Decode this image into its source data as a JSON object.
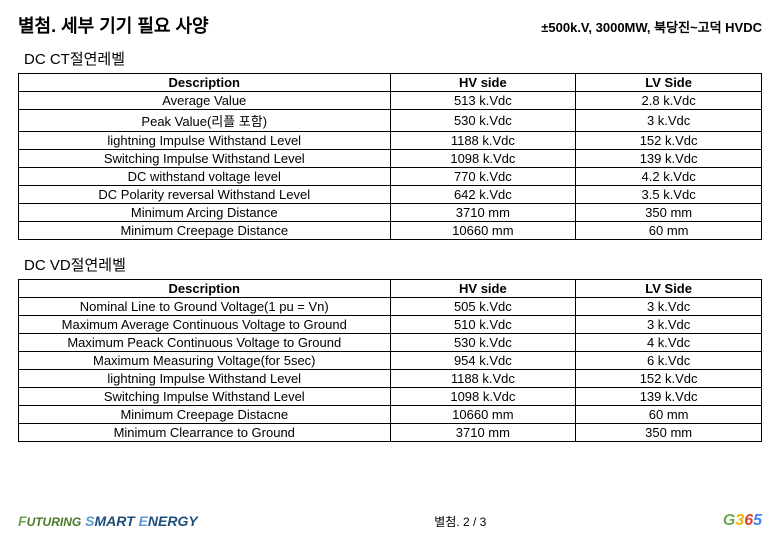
{
  "header": {
    "title": "별첨. 세부 기기 필요 사양",
    "subtitle": "±500k.V, 3000MW, 북당진~고덕 HVDC"
  },
  "section1": {
    "label": "DC CT절연레벨",
    "columns": [
      "Description",
      "HV side",
      "LV Side"
    ],
    "rows": [
      [
        "Average Value",
        "513 k.Vdc",
        "2.8 k.Vdc"
      ],
      [
        "Peak Value(리플 포함)",
        "530 k.Vdc",
        "3 k.Vdc"
      ],
      [
        "lightning Impulse Withstand Level",
        "1188 k.Vdc",
        "152 k.Vdc"
      ],
      [
        "Switching Impulse Withstand Level",
        "1098 k.Vdc",
        "139 k.Vdc"
      ],
      [
        "DC withstand voltage level",
        "770 k.Vdc",
        "4.2 k.Vdc"
      ],
      [
        "DC Polarity reversal Withstand  Level",
        "642 k.Vdc",
        "3.5 k.Vdc"
      ],
      [
        "Minimum Arcing Distance",
        "3710 mm",
        "350 mm"
      ],
      [
        "Minimum Creepage Distance",
        "10660 mm",
        "60 mm"
      ]
    ]
  },
  "section2": {
    "label": "DC VD절연레벨",
    "columns": [
      "Description",
      "HV side",
      "LV Side"
    ],
    "rows": [
      [
        "Nominal Line to Ground Voltage(1 pu = Vn)",
        "505 k.Vdc",
        "3 k.Vdc"
      ],
      [
        "Maximum Average Continuous Voltage to Ground",
        "510 k.Vdc",
        "3 k.Vdc"
      ],
      [
        "Maximum Peack Continuous Voltage to Ground",
        "530 k.Vdc",
        "4 k.Vdc"
      ],
      [
        "Maximum Measuring Voltage(for 5sec)",
        "954 k.Vdc",
        "6 k.Vdc"
      ],
      [
        "lightning Impulse Withstand Level",
        "1188 k.Vdc",
        "152 k.Vdc"
      ],
      [
        "Switching Impulse Withstand Level",
        "1098 k.Vdc",
        "139 k.Vdc"
      ],
      [
        "Minimum Creepage Distacne",
        "10660 mm",
        "60 mm"
      ],
      [
        "Minimum Clearrance to Ground",
        "3710 mm",
        "350 mm"
      ]
    ]
  },
  "footer": {
    "page": "별첨. 2 / 3"
  }
}
